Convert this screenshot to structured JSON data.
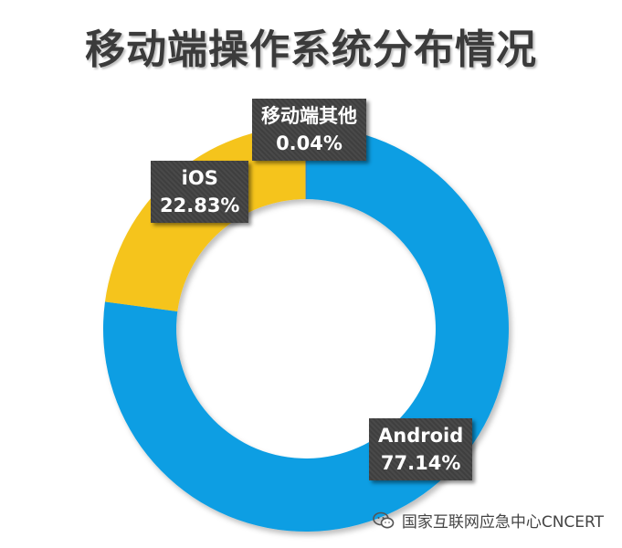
{
  "title": "移动端操作系统分布情况",
  "watermark": "国家互联网应急中心CNCERT",
  "chart_data": {
    "type": "pie",
    "donut": true,
    "title": "移动端操作系统分布情况",
    "start_angle": "top",
    "direction": "clockwise",
    "slices": [
      {
        "label": "Android",
        "value": 77.14,
        "display": "77.14%",
        "color": "#0a9ee3"
      },
      {
        "label": "iOS",
        "value": 22.83,
        "display": "22.83%",
        "color": "#f5c41a"
      },
      {
        "label": "移动端其他",
        "value": 0.04,
        "display": "0.04%",
        "color": "#2f80c8"
      }
    ]
  }
}
